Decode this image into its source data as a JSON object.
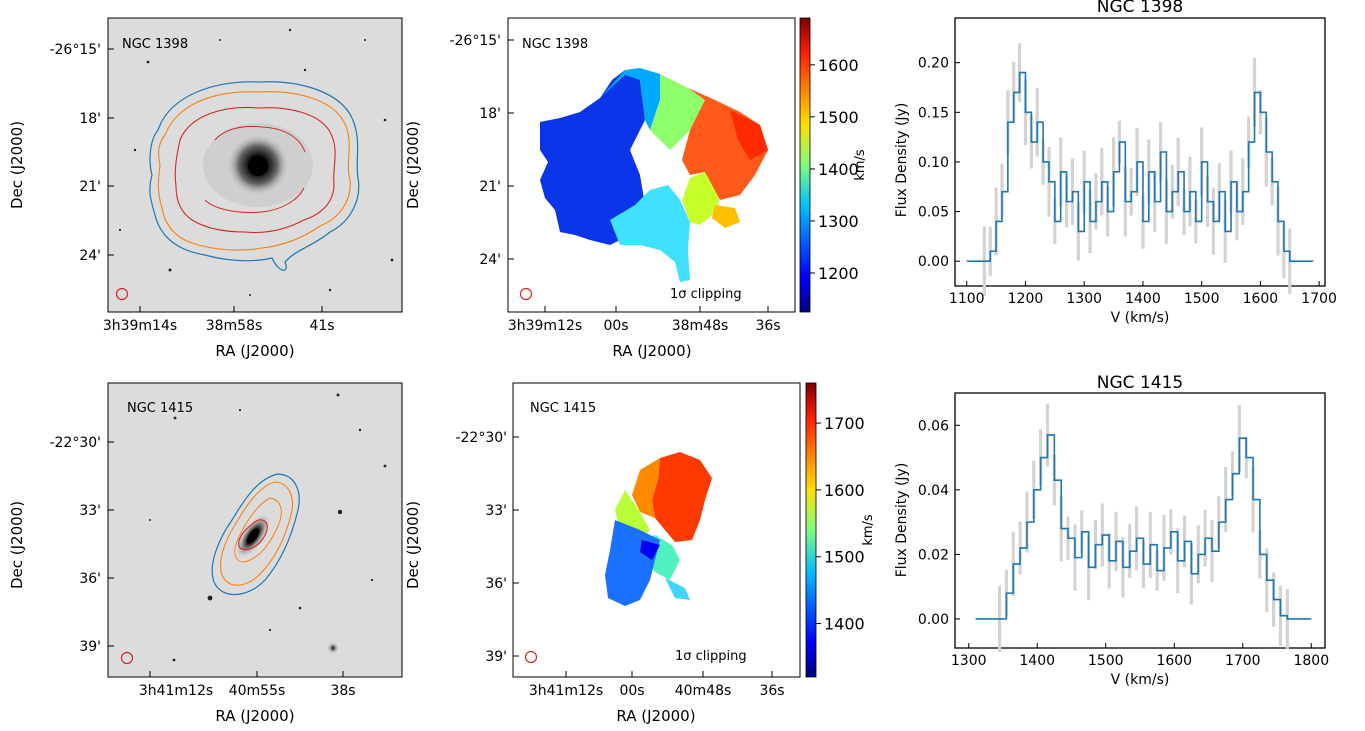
{
  "chart_data": [
    {
      "panel": "optical-contour-map",
      "type": "image",
      "label": "NGC 1398",
      "xlabel": "RA (J2000)",
      "ylabel": "Dec (J2000)",
      "xticks": [
        "3h39m14s",
        "38m58s",
        "41s"
      ],
      "yticks": [
        "-26°15'",
        "18'",
        "21'",
        "24'"
      ],
      "contour_colors": [
        "#1f77b4",
        "#ff7f0e",
        "#d62728"
      ]
    },
    {
      "panel": "velocity-field",
      "type": "heatmap",
      "label": "NGC 1398",
      "note": "1σ clipping",
      "xlabel": "RA (J2000)",
      "ylabel": "Dec (J2000)",
      "xticks": [
        "3h39m12s",
        "00s",
        "38m48s",
        "36s"
      ],
      "yticks": [
        "-26°15'",
        "18'",
        "21'",
        "24'"
      ],
      "colorbar": {
        "label": "km/s",
        "ticks": [
          1200,
          1300,
          1400,
          1500,
          1600
        ],
        "range": [
          1125,
          1690
        ]
      }
    },
    {
      "panel": "spectrum",
      "type": "line",
      "title": "NGC 1398",
      "xlabel": "V (km/s)",
      "ylabel": "Flux Density (Jy)",
      "xlim": [
        1080,
        1710
      ],
      "ylim": [
        -0.025,
        0.245
      ],
      "xticks": [
        1100,
        1200,
        1300,
        1400,
        1500,
        1600,
        1700
      ],
      "yticks": [
        0.0,
        0.05,
        0.1,
        0.15,
        0.2
      ],
      "x": [
        1100,
        1130,
        1140,
        1150,
        1160,
        1170,
        1180,
        1190,
        1200,
        1210,
        1220,
        1230,
        1240,
        1250,
        1260,
        1270,
        1280,
        1290,
        1300,
        1310,
        1320,
        1330,
        1340,
        1350,
        1360,
        1370,
        1380,
        1390,
        1400,
        1410,
        1420,
        1430,
        1440,
        1450,
        1460,
        1470,
        1480,
        1490,
        1500,
        1510,
        1520,
        1530,
        1540,
        1550,
        1560,
        1570,
        1580,
        1590,
        1600,
        1610,
        1620,
        1630,
        1640,
        1650,
        1690
      ],
      "values": [
        0,
        0,
        0.01,
        0.04,
        0.07,
        0.14,
        0.17,
        0.19,
        0.15,
        0.12,
        0.14,
        0.1,
        0.08,
        0.04,
        0.09,
        0.06,
        0.07,
        0.03,
        0.08,
        0.04,
        0.06,
        0.08,
        0.05,
        0.09,
        0.12,
        0.06,
        0.07,
        0.1,
        0.04,
        0.09,
        0.06,
        0.11,
        0.05,
        0.07,
        0.09,
        0.05,
        0.07,
        0.04,
        0.1,
        0.06,
        0.04,
        0.07,
        0.03,
        0.08,
        0.05,
        0.07,
        0.12,
        0.17,
        0.15,
        0.11,
        0.08,
        0.04,
        0.01,
        0,
        0
      ]
    },
    {
      "panel": "optical-contour-map",
      "type": "image",
      "label": "NGC 1415",
      "xlabel": "RA (J2000)",
      "ylabel": "Dec (J2000)",
      "xticks": [
        "3h41m12s",
        "40m55s",
        "38s"
      ],
      "yticks": [
        "-22°30'",
        "33'",
        "36'",
        "39'"
      ],
      "contour_colors": [
        "#1f77b4",
        "#ff7f0e",
        "#d62728"
      ]
    },
    {
      "panel": "velocity-field",
      "type": "heatmap",
      "label": "NGC 1415",
      "note": "1σ clipping",
      "xlabel": "RA (J2000)",
      "ylabel": "Dec (J2000)",
      "xticks": [
        "3h41m12s",
        "00s",
        "40m48s",
        "36s"
      ],
      "yticks": [
        "-22°30'",
        "33'",
        "36'",
        "39'"
      ],
      "colorbar": {
        "label": "km/s",
        "ticks": [
          1400,
          1500,
          1600,
          1700
        ],
        "range": [
          1320,
          1760
        ]
      }
    },
    {
      "panel": "spectrum",
      "type": "line",
      "title": "NGC 1415",
      "xlabel": "V (km/s)",
      "ylabel": "Flux Density (Jy)",
      "xlim": [
        1280,
        1820
      ],
      "ylim": [
        -0.009,
        0.07
      ],
      "xticks": [
        1300,
        1400,
        1500,
        1600,
        1700,
        1800
      ],
      "yticks": [
        0.0,
        0.02,
        0.04,
        0.06
      ],
      "x": [
        1310,
        1345,
        1355,
        1365,
        1375,
        1385,
        1395,
        1405,
        1415,
        1425,
        1435,
        1445,
        1455,
        1465,
        1475,
        1485,
        1495,
        1505,
        1515,
        1525,
        1535,
        1545,
        1555,
        1565,
        1575,
        1585,
        1595,
        1605,
        1615,
        1625,
        1635,
        1645,
        1655,
        1665,
        1675,
        1685,
        1695,
        1705,
        1715,
        1725,
        1735,
        1745,
        1755,
        1765,
        1800
      ],
      "values": [
        0,
        0,
        0.008,
        0.017,
        0.022,
        0.03,
        0.04,
        0.05,
        0.057,
        0.043,
        0.028,
        0.025,
        0.019,
        0.027,
        0.016,
        0.023,
        0.026,
        0.018,
        0.024,
        0.016,
        0.021,
        0.025,
        0.017,
        0.023,
        0.015,
        0.022,
        0.027,
        0.018,
        0.024,
        0.014,
        0.02,
        0.025,
        0.021,
        0.03,
        0.037,
        0.045,
        0.056,
        0.05,
        0.037,
        0.02,
        0.012,
        0.006,
        0.001,
        0,
        0
      ]
    }
  ]
}
